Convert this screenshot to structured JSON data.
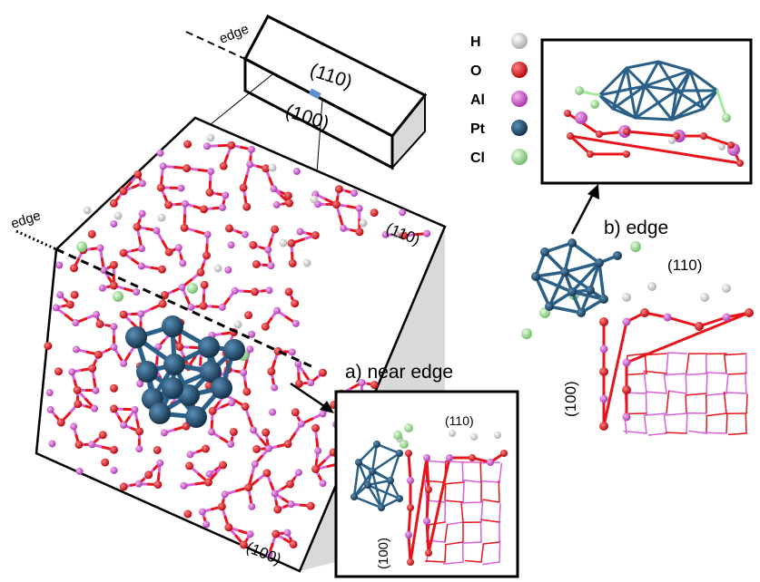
{
  "slab": {
    "edge_label": "edge",
    "face_top": "(110)",
    "face_front": "(100)"
  },
  "main_cluster": {
    "edge_label": "edge",
    "face_top": "(110)",
    "face_bottom": "(100)"
  },
  "inset_a": {
    "caption": "a) near  edge",
    "face_top": "(110)",
    "face_side": "(100)"
  },
  "inset_b": {
    "caption": "b) edge",
    "face_top": "(110)",
    "face_side": "(100)"
  },
  "legend": [
    {
      "symbol": "H",
      "color": "#f2f2f2"
    },
    {
      "symbol": "O",
      "color": "#e8141b"
    },
    {
      "symbol": "Al",
      "color": "#d860d8"
    },
    {
      "symbol": "Pt",
      "color": "#205a80"
    },
    {
      "symbol": "Cl",
      "color": "#a8e8a0"
    }
  ],
  "colors": {
    "oxygen": "#e8141b",
    "aluminum": "#d860d8",
    "platinum": "#2a6088",
    "hydrogen": "#f2f2f2",
    "chlorine": "#a8e8a0",
    "shade": "#d9d9d9"
  }
}
